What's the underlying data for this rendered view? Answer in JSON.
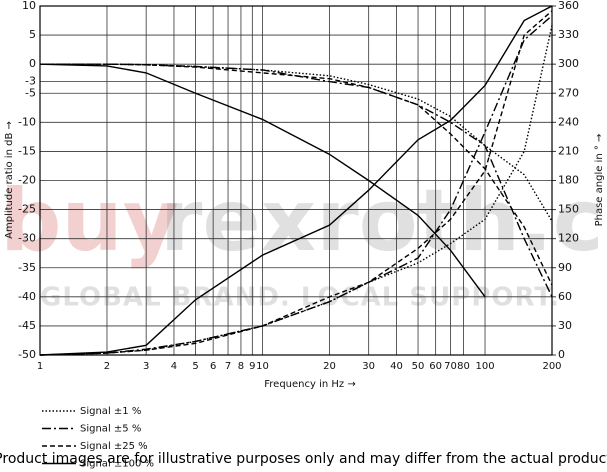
{
  "chart_data": {
    "type": "line",
    "xlabel": "Frequency in Hz →",
    "ylabel": "Amplitude ratio in dB →",
    "y2label": "Phase angle in ° →",
    "log_x": true,
    "grid": true,
    "color": "#000000",
    "xlim": [
      1,
      200
    ],
    "ylim": [
      -50,
      10
    ],
    "y2lim": [
      0,
      360
    ],
    "xticks": [
      1,
      2,
      3,
      4,
      5,
      6,
      7,
      8,
      9,
      10,
      20,
      30,
      40,
      50,
      60,
      70,
      80,
      100,
      200
    ],
    "yticks": [
      10,
      5,
      0,
      -3,
      -5,
      -10,
      -15,
      -20,
      -25,
      -30,
      -35,
      -40,
      -45,
      -50
    ],
    "y2ticks": [
      360,
      330,
      300,
      270,
      240,
      210,
      180,
      150,
      120,
      90,
      60,
      30,
      0
    ],
    "x": [
      1,
      2,
      3,
      5,
      10,
      20,
      30,
      50,
      70,
      100,
      150,
      200
    ],
    "series": [
      {
        "name": "Signal ±1 %",
        "dash": "dotted",
        "values": [
          0,
          0,
          -0.1,
          -0.4,
          -1,
          -2,
          -3.5,
          -6,
          -9,
          -14,
          -19,
          -27
        ],
        "y2_values": [
          0,
          2,
          5,
          14,
          30,
          55,
          75,
          95,
          115,
          140,
          210,
          340
        ]
      },
      {
        "name": "Signal ±5 %",
        "dash": "dash-dot",
        "values": [
          0,
          0,
          -0.1,
          -0.4,
          -1,
          -3,
          -4,
          -7,
          -10,
          -14,
          -30,
          -40
        ],
        "y2_values": [
          0,
          2,
          6,
          14,
          30,
          55,
          75,
          100,
          150,
          230,
          325,
          350
        ]
      },
      {
        "name": "Signal ±25 %",
        "dash": "dashed",
        "values": [
          0,
          0,
          -0.1,
          -0.5,
          -1.5,
          -2.5,
          -4,
          -7,
          -12,
          -18,
          -28,
          -38
        ],
        "y2_values": [
          0,
          2,
          5,
          12,
          30,
          60,
          75,
          110,
          140,
          190,
          330,
          355
        ]
      },
      {
        "name": "Signal ±100 %",
        "dash": "solid",
        "values": [
          0,
          -0.3,
          -1.5,
          -5,
          -9.5,
          -15.5,
          -20,
          -26,
          -32,
          -40,
          null,
          null
        ],
        "y2_values": [
          0,
          3,
          10,
          57,
          103,
          134,
          170,
          222,
          242,
          278,
          345,
          360
        ]
      }
    ]
  },
  "watermark": {
    "brand_red": "buy",
    "brand_gray": "rexroth.com",
    "slogan": "GLOBAL BRAND. LOCAL SUPPORT."
  },
  "footer": "Product images are for illustrative purposes only and may differ from the actual product"
}
